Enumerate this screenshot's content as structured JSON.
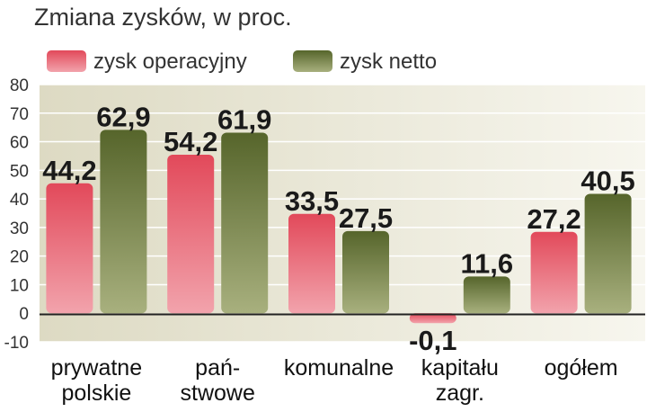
{
  "chart_data": {
    "type": "bar",
    "title": "Zmiana zysków, w proc.",
    "categories": [
      [
        "prywatne",
        "polskie"
      ],
      [
        "pań-",
        "stwowe"
      ],
      [
        "komunalne"
      ],
      [
        "kapitału",
        "zagr."
      ],
      [
        "ogółem"
      ]
    ],
    "series": [
      {
        "name": "zysk operacyjny",
        "values": [
          44.2,
          54.2,
          33.5,
          -0.1,
          27.2
        ],
        "labels": [
          "44,2",
          "54,2",
          "33,5",
          "-0,1",
          "27,2"
        ]
      },
      {
        "name": "zysk netto",
        "values": [
          62.9,
          61.9,
          27.5,
          11.6,
          40.5
        ],
        "labels": [
          "62,9",
          "61,9",
          "27,5",
          "11,6",
          "40,5"
        ]
      }
    ],
    "ylim": [
      -10,
      80
    ],
    "yticks": [
      80,
      70,
      60,
      50,
      40,
      30,
      20,
      10,
      0,
      -10
    ],
    "grid": true,
    "legend": "top-left",
    "colors": {
      "series1": "#d83a4a",
      "series2": "#5f6e31",
      "background": "#ebe8d6",
      "grid": "#ffffff"
    }
  }
}
